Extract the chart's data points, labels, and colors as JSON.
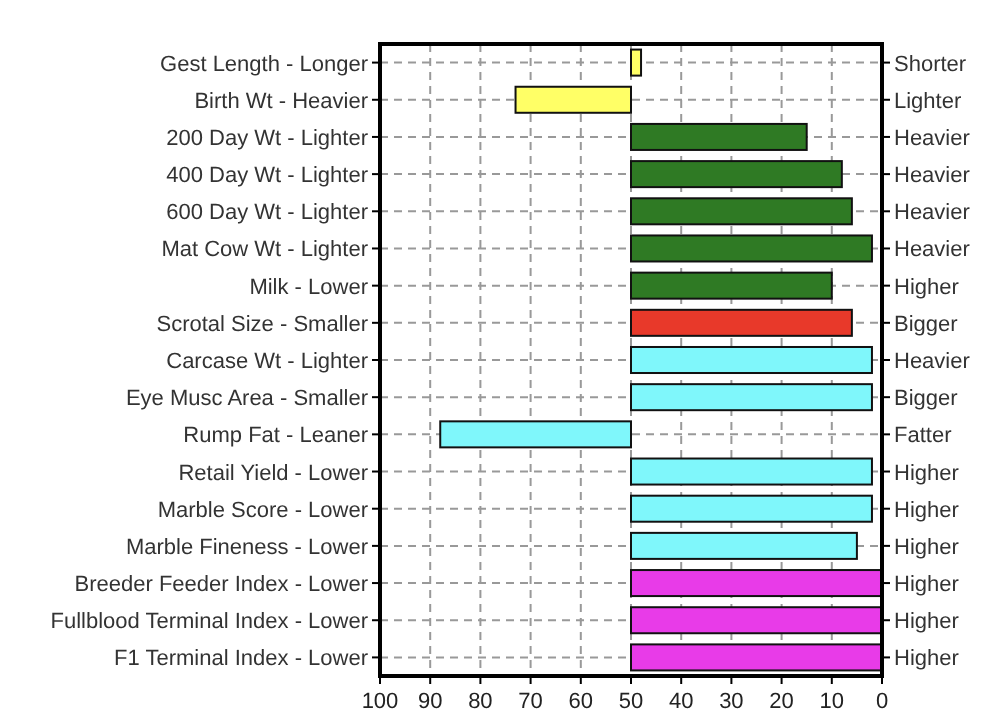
{
  "chart_data": {
    "type": "bar",
    "orientation": "horizontal",
    "categories": [
      "Gest Length - Longer",
      "Birth Wt - Heavier",
      "200 Day Wt - Lighter",
      "400 Day Wt - Lighter",
      "600 Day Wt - Lighter",
      "Mat Cow Wt - Lighter",
      "Milk - Lower",
      "Scrotal Size - Smaller",
      "Carcase Wt - Lighter",
      "Eye Musc Area - Smaller",
      "Rump Fat - Leaner",
      "Retail Yield - Lower",
      "Marble Score - Lower",
      "Marble Fineness - Lower",
      "Breeder Feeder Index - Lower",
      "Fullblood Terminal Index - Lower",
      "F1 Terminal Index - Lower"
    ],
    "y2_categories": [
      "Shorter",
      "Lighter",
      "Heavier",
      "Heavier",
      "Heavier",
      "Heavier",
      "Higher",
      "Bigger",
      "Heavier",
      "Bigger",
      "Fatter",
      "Higher",
      "Higher",
      "Higher",
      "Higher",
      "Higher",
      "Higher"
    ],
    "base": [
      50,
      50,
      50,
      50,
      50,
      50,
      50,
      50,
      50,
      50,
      50,
      50,
      50,
      50,
      50,
      50,
      50
    ],
    "values": [
      -2,
      23,
      -35,
      -42,
      -44,
      -48,
      -40,
      -44,
      -48,
      -48,
      38,
      -48,
      -48,
      -45,
      -50,
      -50,
      -50
    ],
    "colors": [
      "#ffff66",
      "#ffff66",
      "#2f7a24",
      "#2f7a24",
      "#2f7a24",
      "#2f7a24",
      "#2f7a24",
      "#e8392a",
      "#7ff7fb",
      "#7ff7fb",
      "#7ff7fb",
      "#7ff7fb",
      "#7ff7fb",
      "#7ff7fb",
      "#e83be8",
      "#e83be8",
      "#e83be8"
    ],
    "xlim": [
      100,
      0
    ],
    "xticks": [
      100,
      90,
      80,
      70,
      60,
      50,
      40,
      30,
      20,
      10,
      0
    ],
    "grid": true
  }
}
